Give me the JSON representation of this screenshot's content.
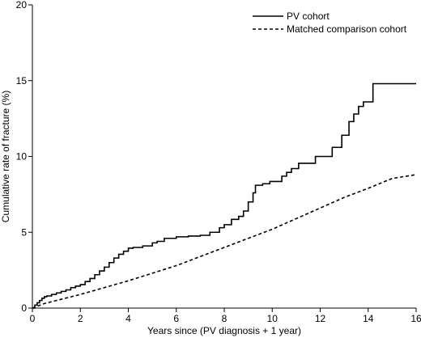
{
  "chart_data": {
    "type": "line",
    "title": "",
    "xlabel": "Years since (PV diagnosis + 1 year)",
    "ylabel": "Cumulative rate of fracture (%)",
    "xlim": [
      0,
      16
    ],
    "ylim": [
      0,
      20
    ],
    "xticks": [
      0,
      2,
      4,
      6,
      8,
      10,
      12,
      14,
      16
    ],
    "yticks": [
      0,
      5,
      10,
      15,
      20
    ],
    "grid": false,
    "legend_position": "top-right",
    "series": [
      {
        "name": "PV cohort",
        "style": "solid",
        "color": "#000000",
        "step": true,
        "x": [
          0,
          0.1,
          0.2,
          0.3,
          0.4,
          0.5,
          0.6,
          0.8,
          1.0,
          1.2,
          1.4,
          1.6,
          1.8,
          2.0,
          2.2,
          2.4,
          2.6,
          2.8,
          3.0,
          3.2,
          3.4,
          3.6,
          3.8,
          4.0,
          4.2,
          4.6,
          5.0,
          5.2,
          5.5,
          6.0,
          6.5,
          7.0,
          7.4,
          7.8,
          8.0,
          8.3,
          8.6,
          8.8,
          9.0,
          9.2,
          9.3,
          9.6,
          9.9,
          10.4,
          10.6,
          10.8,
          11.1,
          11.8,
          12.5,
          12.9,
          13.2,
          13.4,
          13.6,
          13.8,
          14.2,
          14.5,
          16.0
        ],
        "y": [
          0,
          0.2,
          0.35,
          0.5,
          0.65,
          0.75,
          0.8,
          0.9,
          1.0,
          1.1,
          1.2,
          1.35,
          1.45,
          1.55,
          1.75,
          1.95,
          2.2,
          2.45,
          2.7,
          3.0,
          3.3,
          3.55,
          3.75,
          3.95,
          4.0,
          4.1,
          4.3,
          4.4,
          4.6,
          4.7,
          4.75,
          4.8,
          5.0,
          5.3,
          5.5,
          5.85,
          6.05,
          6.4,
          7.0,
          7.6,
          8.1,
          8.2,
          8.35,
          8.7,
          8.95,
          9.2,
          9.55,
          10.0,
          10.6,
          11.4,
          12.3,
          12.8,
          13.3,
          13.6,
          14.8,
          14.8,
          14.8
        ]
      },
      {
        "name": "Matched comparison cohort",
        "style": "dashed",
        "color": "#000000",
        "step": false,
        "x": [
          0,
          0.5,
          1,
          2,
          3,
          4,
          5,
          6,
          7,
          8,
          9,
          10,
          11,
          12,
          13,
          14,
          15,
          16
        ],
        "y": [
          0,
          0.3,
          0.5,
          0.9,
          1.35,
          1.8,
          2.3,
          2.8,
          3.4,
          4.0,
          4.6,
          5.2,
          5.9,
          6.6,
          7.3,
          7.9,
          8.55,
          8.8
        ]
      }
    ]
  }
}
